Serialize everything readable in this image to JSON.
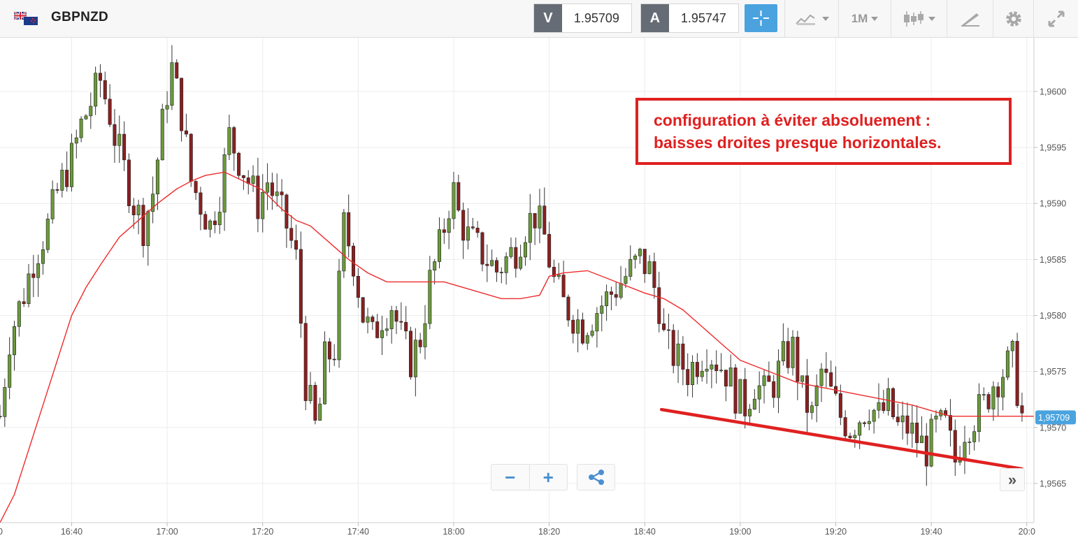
{
  "toolbar": {
    "symbol": "GBPNZD",
    "bid_label": "V",
    "bid_value": "1.95709",
    "ask_label": "A",
    "ask_value": "1.95747",
    "timeframe": "1M",
    "icons": [
      "uk-nz-flag-icon",
      "crosshair-icon",
      "chart-type-icon",
      "timeframe-dropdown",
      "candlestick-icon",
      "drawing-tools-icon",
      "gear-icon",
      "expand-icon"
    ]
  },
  "annotation": {
    "line1": "configuration à éviter absoluement :",
    "line2": "baisses droites presque horizontales.",
    "color": "#e02020"
  },
  "controls": {
    "zoom_out": "−",
    "zoom_in": "+",
    "scroll_end": "»",
    "icons": [
      "share-icon"
    ]
  },
  "chart_data": {
    "type": "candlestick",
    "instrument": "GBPNZD",
    "timeframe": "1M",
    "x_tick_labels": [
      "16:40",
      "17:00",
      "17:20",
      "17:40",
      "18:00",
      "18:20",
      "18:40",
      "19:00",
      "19:20",
      "19:40",
      "20:0"
    ],
    "x_tick_minutes": [
      1000,
      1020,
      1040,
      1060,
      1080,
      1100,
      1120,
      1140,
      1160,
      1180,
      1200
    ],
    "y_tick_labels": [
      "1,9600",
      "1,9595",
      "1,9590",
      "1,9585",
      "1,9580",
      "1,9575",
      "1,9570",
      "1,9565"
    ],
    "y_tick_values": [
      1.96,
      1.9595,
      1.959,
      1.9585,
      1.958,
      1.9575,
      1.957,
      1.9565
    ],
    "y_range": [
      1.95615,
      1.96048
    ],
    "x_range_minutes": [
      985,
      1201.5
    ],
    "current_price_label": "1,95709",
    "current_price": 1.95709,
    "colors": {
      "bullish": "#6a9a3a",
      "bearish": "#8a2020",
      "wick": "#333333",
      "moving_average": "#ee2b2b",
      "price_tag": "#4aa3df",
      "trendline": "#e02020",
      "grid": "#ececec"
    },
    "price_path_minutes": [
      985,
      987,
      990,
      992,
      995,
      997,
      1000,
      1002,
      1004,
      1006,
      1008,
      1009,
      1011,
      1013,
      1015,
      1017,
      1019,
      1020,
      1021,
      1023,
      1025,
      1027,
      1029,
      1031,
      1033,
      1035,
      1037,
      1039,
      1040,
      1041,
      1043,
      1045,
      1047,
      1049,
      1051,
      1052,
      1053,
      1055,
      1057,
      1059,
      1061,
      1063,
      1065,
      1067,
      1069,
      1071,
      1073,
      1075,
      1077,
      1079,
      1080,
      1081,
      1083,
      1085,
      1087,
      1089,
      1091,
      1093,
      1095,
      1097,
      1099,
      1100,
      1101,
      1103,
      1105,
      1107,
      1109,
      1111,
      1113,
      1115,
      1117,
      1119,
      1121,
      1123,
      1124,
      1125,
      1127,
      1129,
      1131,
      1133,
      1135,
      1137,
      1139,
      1141,
      1143,
      1145,
      1147,
      1149,
      1151,
      1153,
      1155,
      1157,
      1159,
      1161,
      1163,
      1165,
      1167,
      1169,
      1171,
      1173,
      1175,
      1177,
      1179,
      1181,
      1183,
      1185,
      1187,
      1189,
      1191,
      1193,
      1195,
      1197,
      1199,
      1201
    ],
    "price_path_values": [
      1.9571,
      1.9578,
      1.9582,
      1.9585,
      1.9588,
      1.9591,
      1.9594,
      1.9597,
      1.9599,
      1.9601,
      1.9598,
      1.9596,
      1.9593,
      1.959,
      1.9588,
      1.9591,
      1.9597,
      1.96,
      1.9602,
      1.9598,
      1.9592,
      1.959,
      1.9588,
      1.9591,
      1.9596,
      1.9594,
      1.9592,
      1.959,
      1.9591,
      1.9592,
      1.959,
      1.9588,
      1.9585,
      1.9574,
      1.957,
      1.9572,
      1.9576,
      1.9577,
      1.9588,
      1.9585,
      1.958,
      1.9578,
      1.958,
      1.9581,
      1.9578,
      1.9576,
      1.9578,
      1.9583,
      1.9586,
      1.959,
      1.9591,
      1.9589,
      1.9587,
      1.9586,
      1.9585,
      1.9584,
      1.9585,
      1.9586,
      1.9588,
      1.9589,
      1.9587,
      1.9585,
      1.9583,
      1.9581,
      1.958,
      1.9579,
      1.958,
      1.9581,
      1.9582,
      1.9583,
      1.9584,
      1.9585,
      1.9584,
      1.9581,
      1.9578,
      1.9577,
      1.9576,
      1.9575,
      1.9576,
      1.9577,
      1.9576,
      1.9575,
      1.9573,
      1.9572,
      1.9574,
      1.9573,
      1.9574,
      1.9576,
      1.9577,
      1.9573,
      1.9571,
      1.9575,
      1.9573,
      1.9571,
      1.957,
      1.9571,
      1.9572,
      1.9571,
      1.9572,
      1.957,
      1.957,
      1.9569,
      1.9568,
      1.957,
      1.957,
      1.9567,
      1.957,
      1.9571,
      1.9572,
      1.9574,
      1.9575,
      1.9576,
      1.9571
    ],
    "moving_average": {
      "minutes": [
        985,
        988,
        991,
        994,
        997,
        1000,
        1003,
        1006,
        1010,
        1014,
        1018,
        1022,
        1025,
        1028,
        1032,
        1036,
        1040,
        1044,
        1047,
        1050,
        1054,
        1058,
        1062,
        1066,
        1070,
        1074,
        1078,
        1082,
        1086,
        1090,
        1094,
        1098,
        1100,
        1103,
        1108,
        1114,
        1120,
        1124,
        1128,
        1132,
        1136,
        1140,
        1146,
        1152,
        1158,
        1164,
        1170,
        1176,
        1180,
        1184,
        1188,
        1192,
        1196,
        1200,
        1201.5
      ],
      "values": [
        1.95615,
        1.9564,
        1.9568,
        1.9572,
        1.9576,
        1.958,
        1.95825,
        1.95845,
        1.9587,
        1.95885,
        1.959,
        1.95913,
        1.9592,
        1.95925,
        1.95928,
        1.9592,
        1.95912,
        1.95895,
        1.95885,
        1.9588,
        1.95865,
        1.9585,
        1.95838,
        1.9583,
        1.9583,
        1.9583,
        1.9583,
        1.95825,
        1.9582,
        1.95815,
        1.95815,
        1.95818,
        1.95835,
        1.95838,
        1.9584,
        1.9583,
        1.9582,
        1.95815,
        1.95805,
        1.9579,
        1.95775,
        1.9576,
        1.9575,
        1.9574,
        1.95735,
        1.9573,
        1.95725,
        1.9572,
        1.95715,
        1.9571,
        1.9571,
        1.9571,
        1.9571,
        1.9571,
        1.9571
      ]
    },
    "trendline": {
      "start": [
        1123.5,
        1.95716
      ],
      "end": [
        1199,
        1.95663
      ]
    },
    "grid": true,
    "legend": "none"
  }
}
